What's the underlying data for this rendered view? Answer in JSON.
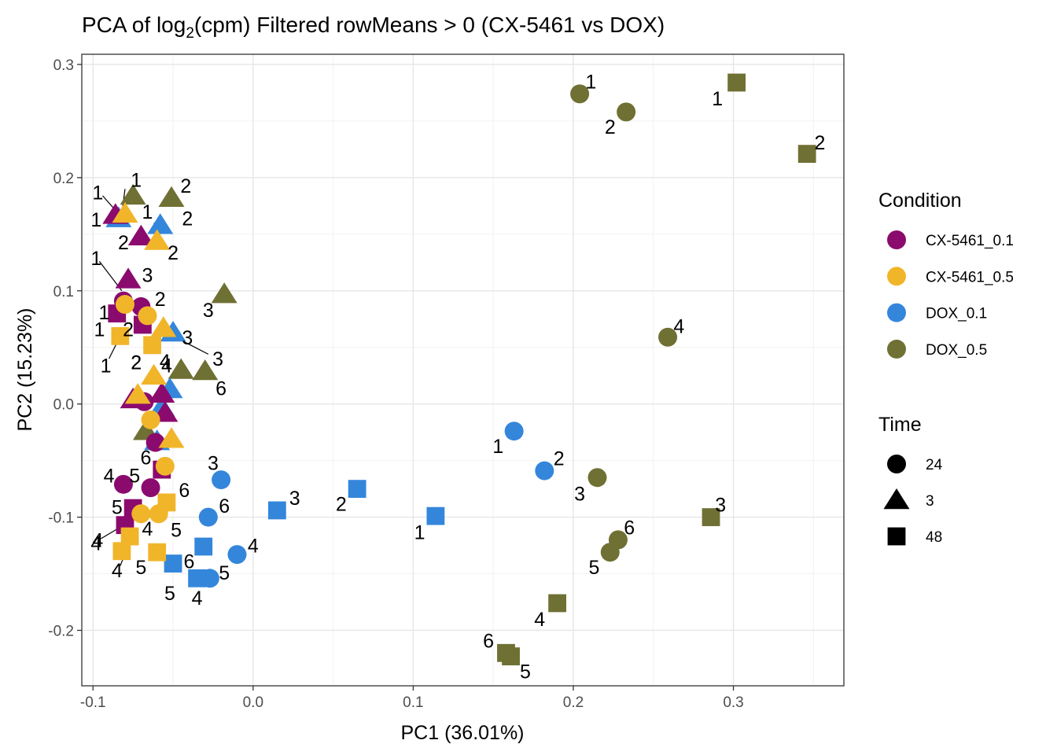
{
  "chart_data": {
    "type": "scatter",
    "title": {
      "prefix": "PCA of log",
      "subscript": "2",
      "suffix": "(cpm) Filtered rowMeans > 0 (CX-5461 vs DOX)"
    },
    "xlabel": "PC1 (36.01%)",
    "ylabel": "PC2 (15.23%)",
    "xlim": [
      -0.107,
      0.369
    ],
    "ylim": [
      -0.249,
      0.309
    ],
    "x_ticks": [
      -0.1,
      0.0,
      0.1,
      0.2,
      0.3
    ],
    "x_tick_labels": [
      "-0.1",
      "0.0",
      "0.1",
      "0.2",
      "0.3"
    ],
    "y_ticks": [
      -0.2,
      -0.1,
      0.0,
      0.1,
      0.2,
      0.3
    ],
    "y_tick_labels": [
      "-0.2",
      "-0.1",
      "0.0",
      "0.1",
      "0.2",
      "0.3"
    ],
    "grid": true,
    "legend": {
      "position": "right",
      "condition_title": "Condition",
      "time_title": "Time",
      "conditions": [
        {
          "name": "CX-5461_0.1",
          "color": "#8B0A6E"
        },
        {
          "name": "CX-5461_0.5",
          "color": "#F1B52A"
        },
        {
          "name": "DOX_0.1",
          "color": "#3486DB"
        },
        {
          "name": "DOX_0.5",
          "color": "#6F7033"
        }
      ],
      "times": [
        {
          "name": "24",
          "shape": "circle"
        },
        {
          "name": "3",
          "shape": "triangle"
        },
        {
          "name": "48",
          "shape": "square"
        }
      ]
    },
    "points": [
      {
        "condition": "DOX_0.5",
        "time": "24",
        "x": 0.204,
        "y": 0.274,
        "label": "1",
        "lx": 0.211,
        "ly": 0.285
      },
      {
        "condition": "DOX_0.5",
        "time": "24",
        "x": 0.233,
        "y": 0.258,
        "label": "2",
        "lx": 0.223,
        "ly": 0.245
      },
      {
        "condition": "DOX_0.5",
        "time": "24",
        "x": 0.215,
        "y": -0.065,
        "label": "3",
        "lx": 0.204,
        "ly": -0.079
      },
      {
        "condition": "DOX_0.5",
        "time": "24",
        "x": 0.259,
        "y": 0.059,
        "label": "4",
        "lx": 0.266,
        "ly": 0.069
      },
      {
        "condition": "DOX_0.5",
        "time": "24",
        "x": 0.223,
        "y": -0.131,
        "label": "5",
        "lx": 0.213,
        "ly": -0.144
      },
      {
        "condition": "DOX_0.5",
        "time": "24",
        "x": 0.228,
        "y": -0.12,
        "label": "6",
        "lx": 0.235,
        "ly": -0.109
      },
      {
        "condition": "DOX_0.5",
        "time": "48",
        "x": 0.302,
        "y": 0.284,
        "label": "1",
        "lx": 0.29,
        "ly": 0.27
      },
      {
        "condition": "DOX_0.5",
        "time": "48",
        "x": 0.346,
        "y": 0.221,
        "label": "2",
        "lx": 0.354,
        "ly": 0.231
      },
      {
        "condition": "DOX_0.5",
        "time": "48",
        "x": 0.286,
        "y": -0.1,
        "label": "3",
        "lx": 0.292,
        "ly": -0.089
      },
      {
        "condition": "DOX_0.5",
        "time": "48",
        "x": 0.19,
        "y": -0.176,
        "label": "4",
        "lx": 0.179,
        "ly": -0.19
      },
      {
        "condition": "DOX_0.5",
        "time": "48",
        "x": 0.161,
        "y": -0.223,
        "label": "5",
        "lx": 0.17,
        "ly": -0.236
      },
      {
        "condition": "DOX_0.5",
        "time": "48",
        "x": 0.158,
        "y": -0.22,
        "label": "6",
        "lx": 0.147,
        "ly": -0.209
      },
      {
        "condition": "DOX_0.5",
        "time": "3",
        "x": -0.075,
        "y": 0.184,
        "label": "1",
        "lx": -0.073,
        "ly": 0.198
      },
      {
        "condition": "DOX_0.5",
        "time": "3",
        "x": -0.051,
        "y": 0.182,
        "label": "2",
        "lx": -0.042,
        "ly": 0.193
      },
      {
        "condition": "DOX_0.5",
        "time": "3",
        "x": -0.018,
        "y": 0.097,
        "label": "3",
        "lx": -0.028,
        "ly": 0.083
      },
      {
        "condition": "DOX_0.5",
        "time": "3",
        "x": -0.045,
        "y": 0.03,
        "label": "4",
        "lx": -0.055,
        "ly": 0.038
      },
      {
        "condition": "DOX_0.5",
        "time": "3",
        "x": -0.03,
        "y": 0.029,
        "label": "6",
        "lx": -0.02,
        "ly": 0.014
      },
      {
        "condition": "DOX_0.5",
        "time": "3",
        "x": -0.067,
        "y": -0.024,
        "label": "",
        "lx": 0,
        "ly": 0
      },
      {
        "condition": "DOX_0.1",
        "time": "24",
        "x": 0.163,
        "y": -0.024,
        "label": "1",
        "lx": 0.153,
        "ly": -0.037
      },
      {
        "condition": "DOX_0.1",
        "time": "24",
        "x": 0.182,
        "y": -0.059,
        "label": "2",
        "lx": 0.191,
        "ly": -0.048
      },
      {
        "condition": "DOX_0.1",
        "time": "24",
        "x": -0.02,
        "y": -0.067,
        "label": "3",
        "lx": -0.025,
        "ly": -0.052
      },
      {
        "condition": "DOX_0.1",
        "time": "24",
        "x": -0.01,
        "y": -0.133,
        "label": "4",
        "lx": 0.0,
        "ly": -0.125
      },
      {
        "condition": "DOX_0.1",
        "time": "24",
        "x": -0.027,
        "y": -0.154,
        "label": "5",
        "lx": -0.018,
        "ly": -0.149
      },
      {
        "condition": "DOX_0.1",
        "time": "24",
        "x": -0.028,
        "y": -0.1,
        "label": "6",
        "lx": -0.018,
        "ly": -0.09
      },
      {
        "condition": "DOX_0.1",
        "time": "48",
        "x": 0.114,
        "y": -0.099,
        "label": "1",
        "lx": 0.104,
        "ly": -0.113
      },
      {
        "condition": "DOX_0.1",
        "time": "48",
        "x": 0.065,
        "y": -0.075,
        "label": "2",
        "lx": 0.055,
        "ly": -0.088
      },
      {
        "condition": "DOX_0.1",
        "time": "48",
        "x": 0.015,
        "y": -0.094,
        "label": "3",
        "lx": 0.026,
        "ly": -0.083
      },
      {
        "condition": "DOX_0.1",
        "time": "48",
        "x": -0.035,
        "y": -0.154,
        "label": "4",
        "lx": -0.035,
        "ly": -0.171
      },
      {
        "condition": "DOX_0.1",
        "time": "48",
        "x": -0.05,
        "y": -0.141,
        "label": "5",
        "lx": -0.052,
        "ly": -0.167
      },
      {
        "condition": "DOX_0.1",
        "time": "48",
        "x": -0.031,
        "y": -0.126,
        "label": "6",
        "lx": -0.04,
        "ly": -0.139
      },
      {
        "condition": "DOX_0.1",
        "time": "3",
        "x": -0.084,
        "y": 0.164,
        "label": "1",
        "lx": -0.098,
        "ly": 0.163
      },
      {
        "condition": "DOX_0.1",
        "time": "3",
        "x": -0.058,
        "y": 0.158,
        "label": "2",
        "lx": -0.041,
        "ly": 0.164
      },
      {
        "condition": "DOX_0.1",
        "time": "3",
        "x": -0.05,
        "y": 0.063,
        "label": "3",
        "lx": -0.041,
        "ly": 0.059
      },
      {
        "condition": "DOX_0.1",
        "time": "3",
        "x": -0.052,
        "y": 0.013,
        "label": "",
        "lx": 0,
        "ly": 0
      },
      {
        "condition": "DOX_0.1",
        "time": "3",
        "x": -0.057,
        "y": -0.003,
        "label": "",
        "lx": 0,
        "ly": 0
      },
      {
        "condition": "DOX_0.1",
        "time": "3",
        "x": -0.06,
        "y": -0.033,
        "label": "",
        "lx": 0,
        "ly": 0
      },
      {
        "condition": "CX-5461_0.1",
        "time": "24",
        "x": -0.081,
        "y": 0.091,
        "label": "",
        "lx": 0,
        "ly": 0
      },
      {
        "condition": "CX-5461_0.1",
        "time": "24",
        "x": -0.07,
        "y": 0.086,
        "label": "2",
        "lx": -0.058,
        "ly": 0.093
      },
      {
        "condition": "CX-5461_0.1",
        "time": "24",
        "x": -0.068,
        "y": 0.002,
        "label": "",
        "lx": 0,
        "ly": 0
      },
      {
        "condition": "CX-5461_0.1",
        "time": "24",
        "x": -0.081,
        "y": -0.071,
        "label": "4",
        "lx": -0.09,
        "ly": -0.063
      },
      {
        "condition": "CX-5461_0.1",
        "time": "24",
        "x": -0.064,
        "y": -0.074,
        "label": "5",
        "lx": -0.074,
        "ly": -0.063
      },
      {
        "condition": "CX-5461_0.1",
        "time": "24",
        "x": -0.061,
        "y": -0.034,
        "label": "6",
        "lx": -0.067,
        "ly": -0.047
      },
      {
        "condition": "CX-5461_0.1",
        "time": "48",
        "x": -0.085,
        "y": 0.08,
        "label": "1",
        "lx": -0.096,
        "ly": 0.066
      },
      {
        "condition": "CX-5461_0.1",
        "time": "48",
        "x": -0.069,
        "y": 0.07,
        "label": "",
        "lx": 0,
        "ly": 0
      },
      {
        "condition": "CX-5461_0.1",
        "time": "48",
        "x": -0.08,
        "y": -0.107,
        "label": "4",
        "lx": -0.097,
        "ly": -0.12
      },
      {
        "condition": "CX-5461_0.1",
        "time": "48",
        "x": -0.075,
        "y": -0.092,
        "label": "5",
        "lx": -0.085,
        "ly": -0.091
      },
      {
        "condition": "CX-5461_0.1",
        "time": "48",
        "x": -0.057,
        "y": -0.058,
        "label": "",
        "lx": 0,
        "ly": 0
      },
      {
        "condition": "CX-5461_0.1",
        "time": "3",
        "x": -0.078,
        "y": 0.11,
        "label": "3",
        "lx": -0.066,
        "ly": 0.114
      },
      {
        "condition": "CX-5461_0.1",
        "time": "3",
        "x": -0.07,
        "y": 0.148,
        "label": "2",
        "lx": -0.081,
        "ly": 0.143
      },
      {
        "condition": "CX-5461_0.1",
        "time": "3",
        "x": -0.086,
        "y": 0.167,
        "label": "",
        "lx": 0,
        "ly": 0
      },
      {
        "condition": "CX-5461_0.1",
        "time": "3",
        "x": -0.075,
        "y": 0.004,
        "label": "",
        "lx": 0,
        "ly": 0
      },
      {
        "condition": "CX-5461_0.1",
        "time": "3",
        "x": -0.057,
        "y": 0.009,
        "label": "",
        "lx": 0,
        "ly": 0
      },
      {
        "condition": "CX-5461_0.1",
        "time": "3",
        "x": -0.055,
        "y": -0.008,
        "label": "",
        "lx": 0,
        "ly": 0
      },
      {
        "condition": "CX-5461_0.5",
        "time": "24",
        "x": -0.08,
        "y": 0.088,
        "label": "",
        "lx": 0,
        "ly": 0
      },
      {
        "condition": "CX-5461_0.5",
        "time": "24",
        "x": -0.066,
        "y": 0.078,
        "label": "",
        "lx": 0,
        "ly": 0
      },
      {
        "condition": "CX-5461_0.5",
        "time": "24",
        "x": -0.064,
        "y": -0.014,
        "label": "",
        "lx": 0,
        "ly": 0
      },
      {
        "condition": "CX-5461_0.5",
        "time": "24",
        "x": -0.07,
        "y": -0.097,
        "label": "",
        "lx": 0,
        "ly": 0
      },
      {
        "condition": "CX-5461_0.5",
        "time": "24",
        "x": -0.059,
        "y": -0.097,
        "label": "5",
        "lx": -0.048,
        "ly": -0.111
      },
      {
        "condition": "CX-5461_0.5",
        "time": "24",
        "x": -0.055,
        "y": -0.055,
        "label": "",
        "lx": 0,
        "ly": 0
      },
      {
        "condition": "CX-5461_0.5",
        "time": "48",
        "x": -0.083,
        "y": 0.06,
        "label": "2",
        "lx": -0.078,
        "ly": 0.066
      },
      {
        "condition": "CX-5461_0.5",
        "time": "48",
        "x": -0.063,
        "y": 0.052,
        "label": "2",
        "lx": -0.073,
        "ly": 0.037
      },
      {
        "condition": "CX-5461_0.5",
        "time": "48",
        "x": -0.054,
        "y": -0.087,
        "label": "6",
        "lx": -0.043,
        "ly": -0.076
      },
      {
        "condition": "CX-5461_0.5",
        "time": "48",
        "x": -0.077,
        "y": -0.117,
        "label": "4",
        "lx": -0.066,
        "ly": -0.11
      },
      {
        "condition": "CX-5461_0.5",
        "time": "48",
        "x": -0.06,
        "y": -0.131,
        "label": "5",
        "lx": -0.07,
        "ly": -0.144
      },
      {
        "condition": "CX-5461_0.5",
        "time": "48",
        "x": -0.082,
        "y": -0.13,
        "label": "4",
        "lx": -0.085,
        "ly": -0.147
      },
      {
        "condition": "CX-5461_0.5",
        "time": "3",
        "x": -0.08,
        "y": 0.168,
        "label": "1",
        "lx": -0.066,
        "ly": 0.17
      },
      {
        "condition": "CX-5461_0.5",
        "time": "3",
        "x": -0.06,
        "y": 0.144,
        "label": "2",
        "lx": -0.05,
        "ly": 0.134
      },
      {
        "condition": "CX-5461_0.5",
        "time": "3",
        "x": -0.056,
        "y": 0.067,
        "label": "",
        "lx": 0,
        "ly": 0
      },
      {
        "condition": "CX-5461_0.5",
        "time": "3",
        "x": -0.062,
        "y": 0.025,
        "label": "4",
        "lx": -0.054,
        "ly": 0.034
      },
      {
        "condition": "CX-5461_0.5",
        "time": "3",
        "x": -0.072,
        "y": 0.008,
        "label": "",
        "lx": 0,
        "ly": 0
      },
      {
        "condition": "CX-5461_0.5",
        "time": "3",
        "x": -0.051,
        "y": -0.031,
        "label": "",
        "lx": 0,
        "ly": 0
      }
    ],
    "extra_labels": [
      {
        "text": "1",
        "x": -0.097,
        "y": 0.187
      },
      {
        "text": "1",
        "x": -0.098,
        "y": 0.129
      },
      {
        "text": "1",
        "x": -0.093,
        "y": 0.081
      },
      {
        "text": "1",
        "x": -0.092,
        "y": 0.034
      },
      {
        "text": "2",
        "x": -0.073,
        "y": 0.037
      },
      {
        "text": "3",
        "x": -0.022,
        "y": 0.04
      },
      {
        "text": "4",
        "x": -0.098,
        "y": -0.123
      }
    ],
    "leader_lines": [
      {
        "x1": -0.094,
        "y1": 0.184,
        "x2": -0.084,
        "y2": 0.168
      },
      {
        "x1": -0.08,
        "y1": 0.19,
        "x2": -0.082,
        "y2": 0.168
      },
      {
        "x1": -0.096,
        "y1": 0.126,
        "x2": -0.082,
        "y2": 0.1
      },
      {
        "x1": -0.09,
        "y1": 0.04,
        "x2": -0.083,
        "y2": 0.06
      },
      {
        "x1": -0.028,
        "y1": 0.044,
        "x2": -0.05,
        "y2": 0.06
      },
      {
        "x1": -0.062,
        "y1": 0.16,
        "x2": -0.057,
        "y2": 0.158
      },
      {
        "x1": -0.095,
        "y1": -0.119,
        "x2": -0.082,
        "y2": -0.108
      },
      {
        "x1": -0.083,
        "y1": -0.143,
        "x2": -0.077,
        "y2": -0.122
      }
    ]
  }
}
